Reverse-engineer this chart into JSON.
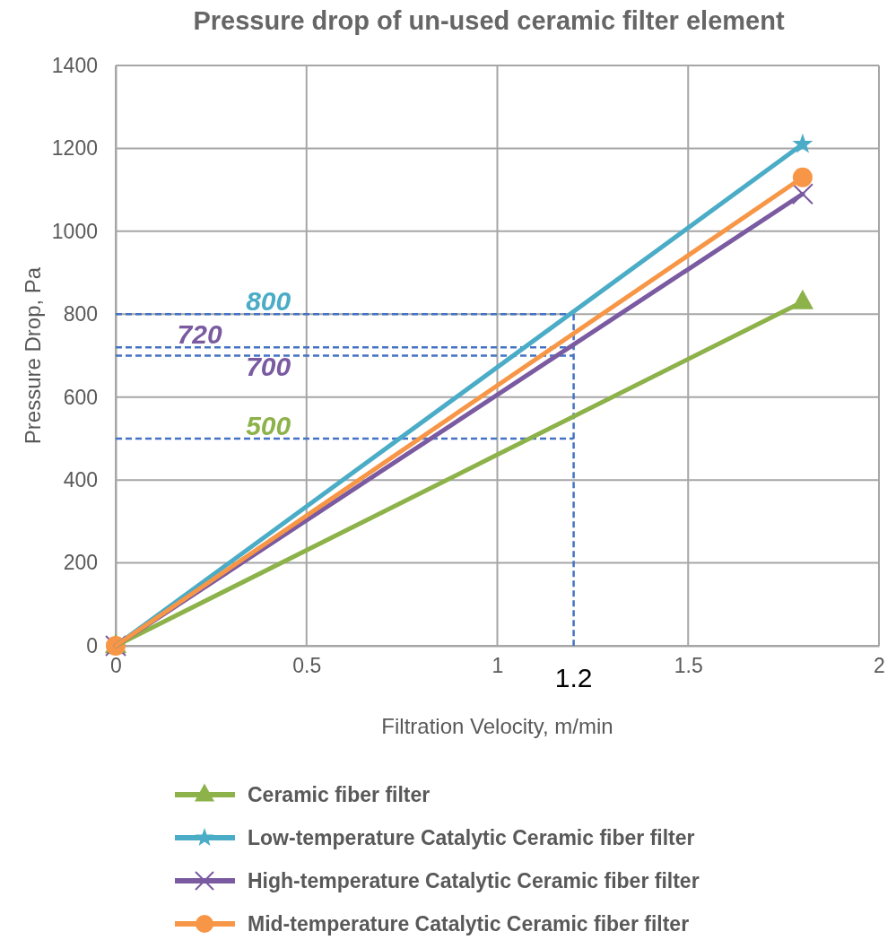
{
  "chart_data": {
    "type": "line",
    "title": "Pressure drop of un-used ceramic filter element",
    "xlabel": "Filtration Velocity, m/min",
    "ylabel": "Pressure Drop, Pa",
    "x": [
      0,
      1.8
    ],
    "xlim": [
      0,
      2
    ],
    "xticks": [
      0,
      0.5,
      1,
      1.5,
      2
    ],
    "ylim": [
      0,
      1400
    ],
    "yticks": [
      0,
      200,
      400,
      600,
      800,
      1000,
      1200,
      1400
    ],
    "grid": true,
    "legend": "bottom",
    "line_style": "solid",
    "series": [
      {
        "name": "Ceramic fiber filter",
        "color": "#8db24a",
        "marker": "triangle",
        "values": [
          0,
          830
        ]
      },
      {
        "name": "Low-temperature Catalytic Ceramic fiber filter",
        "color": "#4aacc6",
        "marker": "star",
        "values": [
          0,
          1210
        ]
      },
      {
        "name": "High-temperature Catalytic Ceramic fiber filter",
        "color": "#7a5aa0",
        "marker": "cross",
        "values": [
          0,
          1090
        ]
      },
      {
        "name": "Mid-temperature Catalytic Ceramic fiber filter",
        "color": "#f79646",
        "marker": "circle",
        "values": [
          0,
          1130
        ]
      }
    ],
    "ref_lines": [
      {
        "axis": "x",
        "value": 1.2,
        "label": "1.2",
        "color": "#4472c4",
        "line_style": "dashed"
      },
      {
        "axis": "y",
        "value": 800,
        "label": "800",
        "color": "#4472c4",
        "line_style": "dashed"
      },
      {
        "axis": "y",
        "value": 720,
        "label": "720",
        "color": "#4472c4",
        "line_style": "dashed"
      },
      {
        "axis": "y",
        "value": 700,
        "label": "700",
        "color": "#4472c4",
        "line_style": "dashed"
      },
      {
        "axis": "y",
        "value": 500,
        "label": "500",
        "color": "#4472c4",
        "line_style": "dashed"
      }
    ]
  }
}
